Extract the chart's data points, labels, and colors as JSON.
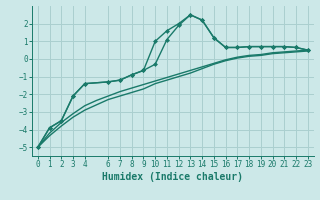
{
  "background_color": "#cce8e8",
  "grid_color": "#aacfcf",
  "line_color": "#1a7a6a",
  "marker": "D",
  "markersize": 2.5,
  "linewidth": 1.0,
  "xlabel": "Humidex (Indice chaleur)",
  "xlabel_fontsize": 7,
  "ylim": [
    -5.5,
    3.0
  ],
  "xlim": [
    -0.5,
    23.5
  ],
  "yticks": [
    -5,
    -4,
    -3,
    -2,
    -1,
    0,
    1,
    2
  ],
  "xticks": [
    0,
    1,
    2,
    3,
    4,
    6,
    7,
    8,
    9,
    10,
    11,
    12,
    13,
    14,
    15,
    16,
    17,
    18,
    19,
    20,
    21,
    22,
    23
  ],
  "curve1_x": [
    0,
    1,
    2,
    3,
    4,
    6,
    7,
    8,
    9,
    10,
    11,
    12,
    13,
    14,
    15,
    16,
    17,
    18,
    19,
    20,
    21,
    22,
    23
  ],
  "curve1_y": [
    -5.0,
    -3.9,
    -3.5,
    -2.1,
    -1.4,
    -1.3,
    -1.2,
    -0.9,
    -0.65,
    1.0,
    1.6,
    2.0,
    2.5,
    2.2,
    1.2,
    0.65,
    0.65,
    0.7,
    0.7,
    0.7,
    0.7,
    0.65,
    0.5
  ],
  "curve2_x": [
    0,
    1,
    2,
    3,
    4,
    6,
    7,
    8,
    9,
    10,
    11,
    12,
    13,
    14,
    15,
    16,
    17,
    18,
    19,
    20,
    21,
    22,
    23
  ],
  "curve2_y": [
    -5.0,
    -3.9,
    -3.5,
    -2.1,
    -1.4,
    -1.3,
    -1.2,
    -0.9,
    -0.65,
    -0.3,
    1.1,
    1.9,
    2.5,
    2.2,
    1.2,
    0.65,
    0.65,
    0.7,
    0.7,
    0.7,
    0.7,
    0.65,
    0.5
  ],
  "curve3_x": [
    0,
    1,
    2,
    3,
    4,
    5,
    6,
    7,
    8,
    9,
    10,
    11,
    12,
    13,
    14,
    15,
    16,
    17,
    18,
    19,
    20,
    21,
    22,
    23
  ],
  "curve3_y": [
    -5.0,
    -4.35,
    -3.8,
    -3.3,
    -2.9,
    -2.6,
    -2.3,
    -2.1,
    -1.9,
    -1.7,
    -1.4,
    -1.2,
    -1.0,
    -0.8,
    -0.55,
    -0.3,
    -0.1,
    0.05,
    0.15,
    0.2,
    0.3,
    0.35,
    0.4,
    0.45
  ],
  "curve4_x": [
    0,
    1,
    2,
    3,
    4,
    5,
    6,
    7,
    8,
    9,
    10,
    11,
    12,
    13,
    14,
    15,
    16,
    17,
    18,
    19,
    20,
    21,
    22,
    23
  ],
  "curve4_y": [
    -5.0,
    -4.2,
    -3.6,
    -3.1,
    -2.65,
    -2.35,
    -2.1,
    -1.85,
    -1.65,
    -1.45,
    -1.25,
    -1.05,
    -0.85,
    -0.65,
    -0.45,
    -0.25,
    -0.05,
    0.1,
    0.2,
    0.25,
    0.35,
    0.4,
    0.45,
    0.5
  ]
}
